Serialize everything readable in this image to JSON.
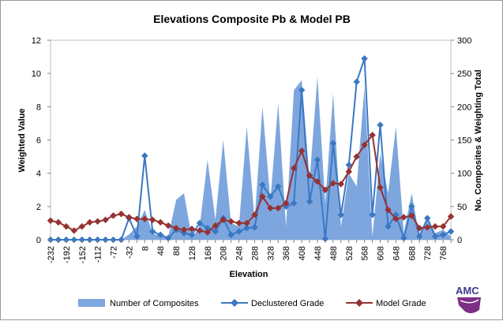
{
  "chart_data": {
    "type": "combo",
    "title": "Elevations Composite Pb & Model PB",
    "xlabel": "Elevation",
    "ylabel": "Weighted Value",
    "y2label": "No. Composites & Weighting Total",
    "ylim": [
      0,
      12
    ],
    "y2lim": [
      0,
      300
    ],
    "yticks": [
      "0",
      "2",
      "4",
      "6",
      "8",
      "10",
      "12"
    ],
    "y2ticks": [
      "0",
      "50",
      "100",
      "150",
      "200",
      "250",
      "300"
    ],
    "x": [
      -232,
      -212,
      -192,
      -172,
      -152,
      -132,
      -112,
      -92,
      -72,
      -52,
      -32,
      -12,
      8,
      28,
      48,
      68,
      88,
      108,
      128,
      148,
      168,
      188,
      208,
      228,
      248,
      268,
      288,
      308,
      328,
      348,
      368,
      388,
      408,
      428,
      448,
      468,
      488,
      508,
      528,
      548,
      568,
      588,
      608,
      628,
      648,
      668,
      688,
      708,
      728,
      748,
      768,
      788
    ],
    "xtick_labels": [
      "-232",
      "-192",
      "-152",
      "-112",
      "-72",
      "-32",
      "8",
      "48",
      "88",
      "128",
      "168",
      "208",
      "248",
      "288",
      "328",
      "368",
      "408",
      "448",
      "488",
      "528",
      "568",
      "608",
      "648",
      "688",
      "728",
      "768"
    ],
    "series": [
      {
        "name": "Number of Composites",
        "kind": "area",
        "axis": "y2",
        "color": "#7ea6de",
        "values": [
          0,
          0,
          0,
          0,
          0,
          0,
          0,
          0,
          0,
          0,
          8,
          20,
          45,
          10,
          5,
          5,
          60,
          70,
          3,
          20,
          120,
          30,
          150,
          25,
          20,
          170,
          30,
          200,
          60,
          205,
          20,
          225,
          240,
          90,
          245,
          55,
          220,
          20,
          100,
          80,
          230,
          5,
          130,
          70,
          170,
          10,
          70,
          5,
          35,
          10,
          15,
          5
        ]
      },
      {
        "name": "Declustered Grade",
        "kind": "line",
        "axis": "y",
        "color": "#3b78c3",
        "values": [
          0,
          0,
          0,
          0,
          0,
          0,
          0,
          0,
          0,
          0,
          1.3,
          0.2,
          5.05,
          0.5,
          0.3,
          0.1,
          0.6,
          0.4,
          0.3,
          1.0,
          0.7,
          0.5,
          1.3,
          0.3,
          0.5,
          0.7,
          0.75,
          3.3,
          2.6,
          3.2,
          2.0,
          2.2,
          9.0,
          2.3,
          4.8,
          0.05,
          5.8,
          1.5,
          4.5,
          9.5,
          10.9,
          1.5,
          6.9,
          0.8,
          1.5,
          0.1,
          2.0,
          0.2,
          1.3,
          0.2,
          0.3,
          0.5
        ]
      },
      {
        "name": "Model Grade",
        "kind": "line",
        "axis": "y",
        "color": "#963232",
        "values": [
          1.15,
          1.05,
          0.8,
          0.55,
          0.8,
          1.05,
          1.1,
          1.2,
          1.45,
          1.55,
          1.35,
          1.25,
          1.25,
          1.2,
          1.05,
          0.85,
          0.7,
          0.6,
          0.65,
          0.55,
          0.45,
          0.85,
          1.2,
          1.1,
          1.0,
          1.0,
          1.5,
          2.6,
          1.9,
          1.9,
          2.2,
          4.3,
          5.35,
          3.85,
          3.5,
          3.0,
          3.4,
          3.35,
          4.1,
          5.0,
          5.7,
          6.3,
          3.15,
          1.8,
          1.25,
          1.35,
          1.45,
          0.7,
          0.75,
          0.8,
          0.8,
          1.4
        ]
      }
    ],
    "legend": [
      "Number of Composites",
      "Declustered Grade",
      "Model Grade"
    ],
    "legend_position": "bottom"
  },
  "logo": {
    "text": "AMC"
  }
}
